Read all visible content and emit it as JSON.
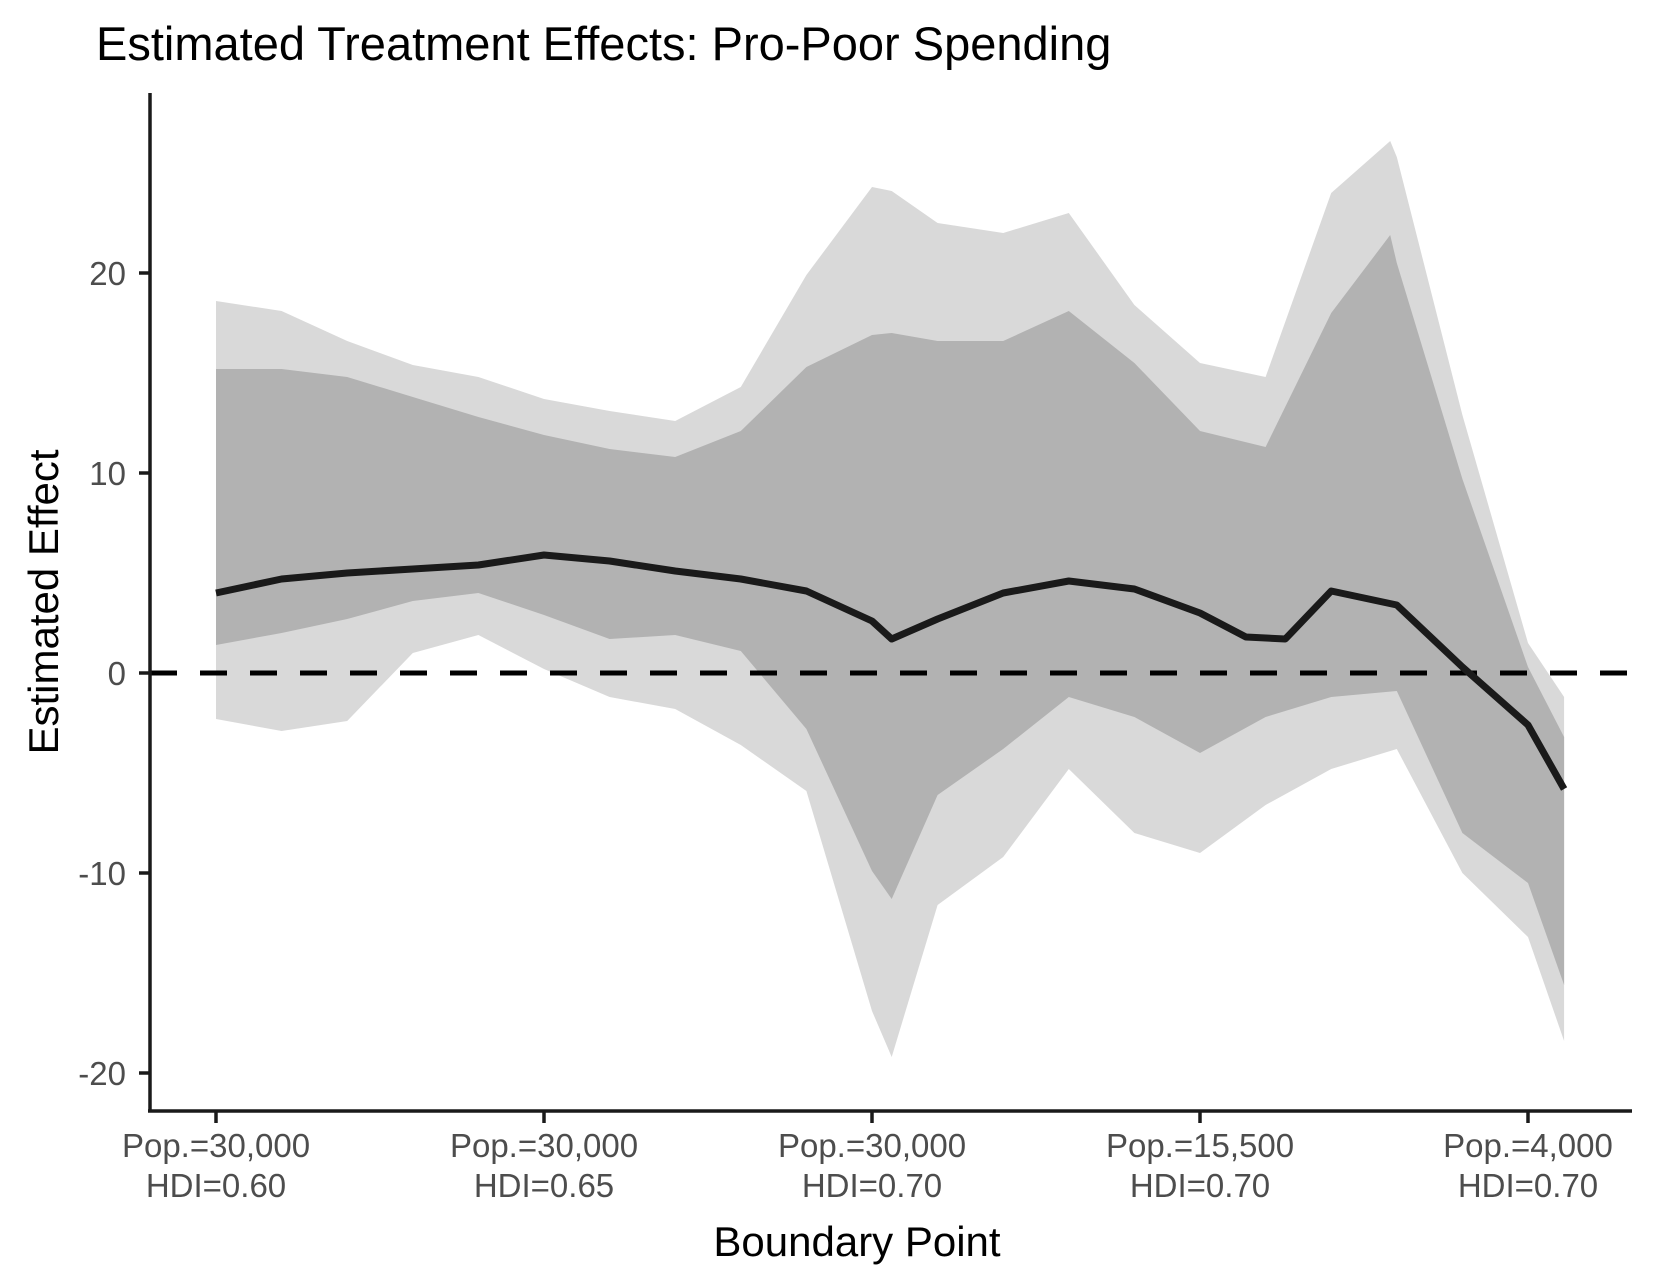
{
  "title": "Estimated Treatment Effects: Pro-Poor Spending",
  "colors": {
    "background": "#ffffff",
    "outer_band": "#d9d9d9",
    "inner_band": "#b2b2b2",
    "estimate_line": "#1a1a1a",
    "zero_line": "#000000",
    "axis_line": "#1a1a1a",
    "tick_text": "#4d4d4d",
    "title_text": "#000000"
  },
  "chart_data": {
    "type": "line",
    "subtype": "line-with-confidence-bands",
    "title": "Estimated Treatment Effects: Pro-Poor Spending",
    "xlabel": "Boundary Point",
    "ylabel": "Estimated Effect",
    "grid": "off",
    "legend": "none",
    "ylim": [
      -21.8,
      28.9
    ],
    "xlim_index": [
      0,
      21.9
    ],
    "y_ticks": [
      {
        "value": 20,
        "label": "20"
      },
      {
        "value": 10,
        "label": "10"
      },
      {
        "value": 0,
        "label": "0"
      },
      {
        "value": -10,
        "label": "-10"
      },
      {
        "value": -20,
        "label": "-20"
      }
    ],
    "x_ticks": [
      {
        "index": 1,
        "line1": "Pop.=30,000",
        "line2": "HDI=0.60"
      },
      {
        "index": 6,
        "line1": "Pop.=30,000",
        "line2": "HDI=0.65"
      },
      {
        "index": 11,
        "line1": "Pop.=30,000",
        "line2": "HDI=0.70"
      },
      {
        "index": 16,
        "line1": "Pop.=15,500",
        "line2": "HDI=0.70"
      },
      {
        "index": 21,
        "line1": "Pop.=4,000",
        "line2": "HDI=0.70"
      }
    ],
    "reference_line": {
      "value": 0,
      "style": "dashed"
    },
    "series": [
      {
        "name": "outer-ci",
        "type": "band",
        "color": "#d9d9d9",
        "top": [
          [
            1,
            18.6
          ],
          [
            2,
            18.1
          ],
          [
            3,
            16.6
          ],
          [
            4,
            15.4
          ],
          [
            5,
            14.8
          ],
          [
            6,
            13.7
          ],
          [
            7,
            13.1
          ],
          [
            8,
            12.6
          ],
          [
            9,
            14.3
          ],
          [
            10,
            19.9
          ],
          [
            11,
            24.3
          ],
          [
            11.3,
            24.1
          ],
          [
            12,
            22.5
          ],
          [
            13,
            22.0
          ],
          [
            14,
            23.0
          ],
          [
            15,
            18.4
          ],
          [
            16,
            15.5
          ],
          [
            17,
            14.8
          ],
          [
            18,
            24.0
          ],
          [
            18.9,
            26.6
          ],
          [
            19,
            25.8
          ],
          [
            20,
            12.9
          ],
          [
            21,
            1.5
          ],
          [
            21.55,
            -1.2
          ]
        ],
        "bottom": [
          [
            1,
            -2.3
          ],
          [
            2,
            -2.9
          ],
          [
            3,
            -2.4
          ],
          [
            4,
            1.0
          ],
          [
            5,
            1.9
          ],
          [
            6,
            0.2
          ],
          [
            7,
            -1.2
          ],
          [
            8,
            -1.8
          ],
          [
            9,
            -3.6
          ],
          [
            10,
            -5.9
          ],
          [
            11,
            -16.9
          ],
          [
            11.3,
            -19.2
          ],
          [
            12,
            -11.6
          ],
          [
            13,
            -9.2
          ],
          [
            14,
            -4.8
          ],
          [
            15,
            -8.0
          ],
          [
            16,
            -9.0
          ],
          [
            17,
            -6.6
          ],
          [
            18,
            -4.8
          ],
          [
            19,
            -3.8
          ],
          [
            20,
            -10.0
          ],
          [
            21,
            -13.2
          ],
          [
            21.55,
            -18.4
          ]
        ]
      },
      {
        "name": "inner-ci",
        "type": "band",
        "color": "#b2b2b2",
        "top": [
          [
            1,
            15.2
          ],
          [
            2,
            15.2
          ],
          [
            3,
            14.8
          ],
          [
            4,
            13.8
          ],
          [
            5,
            12.8
          ],
          [
            6,
            11.9
          ],
          [
            7,
            11.2
          ],
          [
            8,
            10.8
          ],
          [
            9,
            12.1
          ],
          [
            10,
            15.3
          ],
          [
            11,
            16.9
          ],
          [
            11.3,
            17.0
          ],
          [
            12,
            16.6
          ],
          [
            13,
            16.6
          ],
          [
            14,
            18.1
          ],
          [
            15,
            15.5
          ],
          [
            16,
            12.1
          ],
          [
            17,
            11.3
          ],
          [
            18,
            18.0
          ],
          [
            18.9,
            21.9
          ],
          [
            19,
            20.5
          ],
          [
            20,
            9.7
          ],
          [
            21,
            0.3
          ],
          [
            21.55,
            -3.2
          ]
        ],
        "bottom": [
          [
            1,
            1.4
          ],
          [
            2,
            2.0
          ],
          [
            3,
            2.7
          ],
          [
            4,
            3.6
          ],
          [
            5,
            4.0
          ],
          [
            6,
            2.9
          ],
          [
            7,
            1.7
          ],
          [
            8,
            1.9
          ],
          [
            9,
            1.1
          ],
          [
            10,
            -2.8
          ],
          [
            11,
            -9.9
          ],
          [
            11.3,
            -11.3
          ],
          [
            12,
            -6.1
          ],
          [
            13,
            -3.8
          ],
          [
            14,
            -1.2
          ],
          [
            15,
            -2.2
          ],
          [
            16,
            -4.0
          ],
          [
            17,
            -2.2
          ],
          [
            18,
            -1.2
          ],
          [
            19,
            -0.9
          ],
          [
            20,
            -8.0
          ],
          [
            21,
            -10.5
          ],
          [
            21.55,
            -15.6
          ]
        ]
      },
      {
        "name": "estimate",
        "type": "line",
        "color": "#1a1a1a",
        "points": [
          [
            1,
            4.0
          ],
          [
            2,
            4.7
          ],
          [
            3,
            5.0
          ],
          [
            4,
            5.2
          ],
          [
            5,
            5.4
          ],
          [
            6,
            5.9
          ],
          [
            7,
            5.6
          ],
          [
            8,
            5.1
          ],
          [
            9,
            4.7
          ],
          [
            10,
            4.1
          ],
          [
            11,
            2.6
          ],
          [
            11.3,
            1.7
          ],
          [
            12,
            2.7
          ],
          [
            13,
            4.0
          ],
          [
            14,
            4.6
          ],
          [
            15,
            4.2
          ],
          [
            16,
            3.0
          ],
          [
            16.7,
            1.8
          ],
          [
            17.3,
            1.7
          ],
          [
            18,
            4.1
          ],
          [
            19,
            3.4
          ],
          [
            20,
            0.3
          ],
          [
            21,
            -2.6
          ],
          [
            21.55,
            -5.8
          ]
        ]
      }
    ]
  }
}
